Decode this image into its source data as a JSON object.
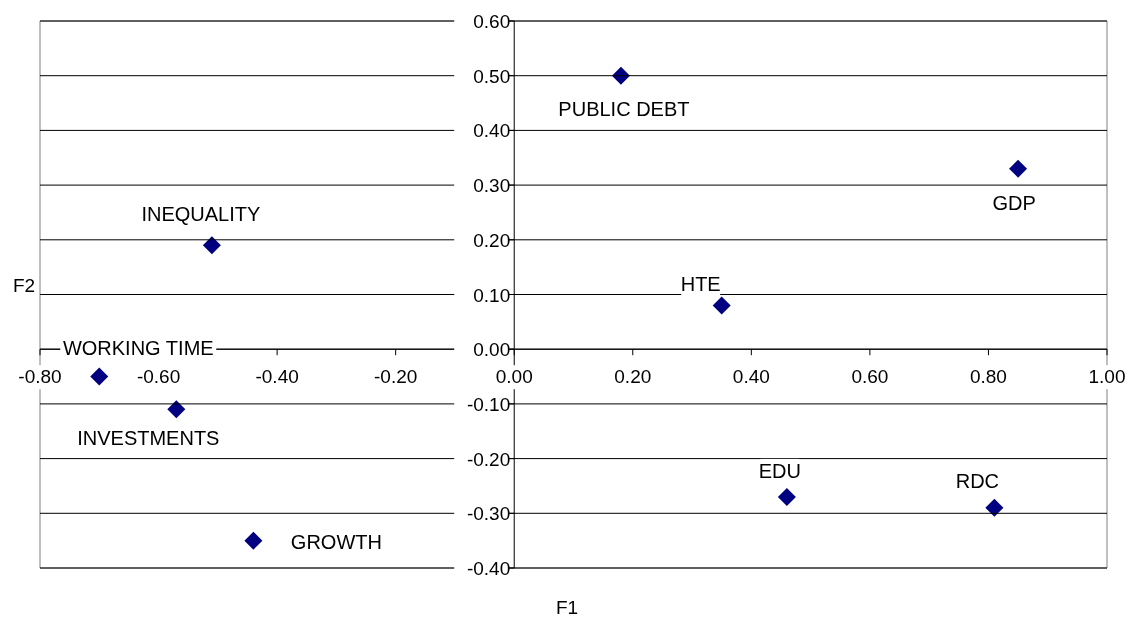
{
  "chart_data": {
    "type": "scatter",
    "xlabel": "F1",
    "ylabel": "F2",
    "x": [
      0.18,
      0.85,
      -0.51,
      0.35,
      -0.7,
      -0.57,
      -0.44,
      0.46,
      0.81
    ],
    "values": [
      0.5,
      0.33,
      0.19,
      0.08,
      -0.05,
      -0.11,
      -0.35,
      -0.27,
      -0.29
    ],
    "color": "#000080",
    "marker": "diamond",
    "xlim": [
      -0.8,
      1.0
    ],
    "xticks": [
      {
        "value": -0.8,
        "label": "-0.80"
      },
      {
        "value": -0.6,
        "label": "-0.60"
      },
      {
        "value": -0.4,
        "label": "-0.40"
      },
      {
        "value": -0.2,
        "label": "-0.20"
      },
      {
        "value": 0,
        "label": "0.00"
      },
      {
        "value": 0.2,
        "label": "0.20"
      },
      {
        "value": 0.4,
        "label": "0.40"
      },
      {
        "value": 0.6,
        "label": "0.60"
      },
      {
        "value": 0.8,
        "label": "0.80"
      },
      {
        "value": 1.0,
        "label": "1.00"
      }
    ],
    "ylim": [
      -0.4,
      0.6
    ],
    "yticks": [
      {
        "value": -0.4,
        "label": "-0.40"
      },
      {
        "value": -0.3,
        "label": "-0.30"
      },
      {
        "value": -0.2,
        "label": "-0.20"
      },
      {
        "value": -0.1,
        "label": "-0.10"
      },
      {
        "value": 0,
        "label": "0.00"
      },
      {
        "value": 0.1,
        "label": "0.10"
      },
      {
        "value": 0.2,
        "label": "0.20"
      },
      {
        "value": 0.3,
        "label": "0.30"
      },
      {
        "value": 0.4,
        "label": "0.40"
      },
      {
        "value": 0.5,
        "label": "0.50"
      },
      {
        "value": 0.6,
        "label": "0.60"
      }
    ],
    "grid": "y",
    "annotations": [
      {
        "text": "PUBLIC DEBT",
        "x": 0.18,
        "y": 0.5
      },
      {
        "text": "GDP",
        "x": 0.85,
        "y": 0.33
      },
      {
        "text": "INEQUALITY",
        "x": -0.51,
        "y": 0.19
      },
      {
        "text": "HTE",
        "x": 0.35,
        "y": 0.08
      },
      {
        "text": "WORKING TIME",
        "x": -0.7,
        "y": -0.05
      },
      {
        "text": "INVESTMENTS",
        "x": -0.57,
        "y": -0.11
      },
      {
        "text": "GROWTH",
        "x": -0.44,
        "y": -0.35
      },
      {
        "text": "EDU",
        "x": 0.46,
        "y": -0.27
      },
      {
        "text": "RDC",
        "x": 0.81,
        "y": -0.29
      }
    ]
  }
}
